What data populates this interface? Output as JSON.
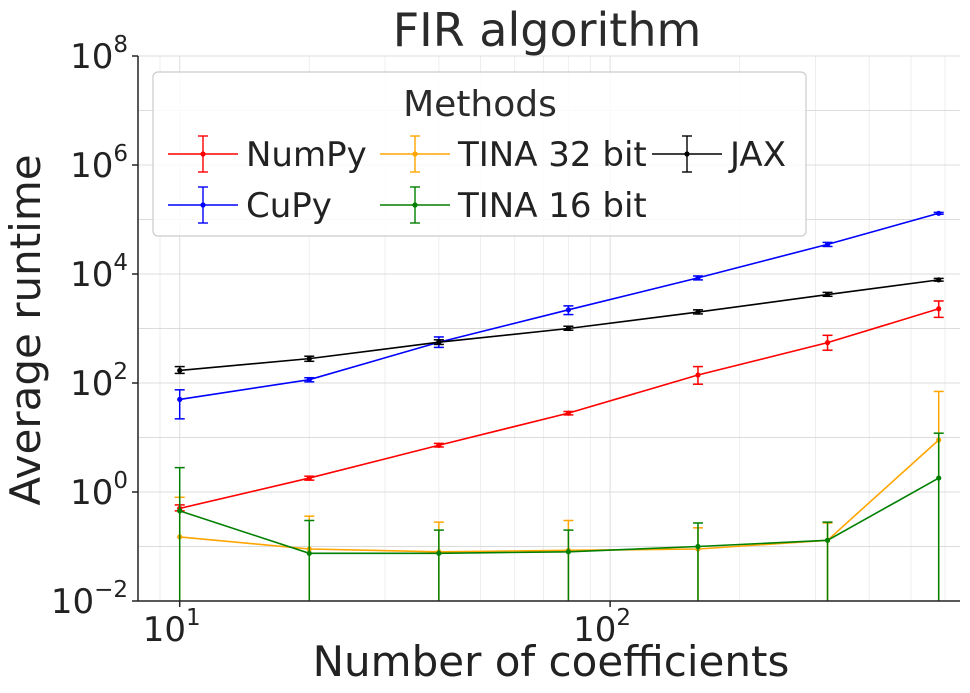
{
  "chart_data": {
    "type": "line",
    "title": "FIR algorithm",
    "xlabel": "Number of coefficients",
    "ylabel": "Average runtime",
    "xscale": "log",
    "yscale": "log",
    "xlim": [
      8,
      650
    ],
    "ylim": [
      0.01,
      100000000
    ],
    "x_ticks": [
      {
        "value": 10,
        "base": "10",
        "exp": "1"
      },
      {
        "value": 100,
        "base": "10",
        "exp": "2"
      }
    ],
    "y_ticks": [
      {
        "value": 0.01,
        "base": "10",
        "exp": "−2"
      },
      {
        "value": 1,
        "base": "10",
        "exp": "0"
      },
      {
        "value": 100,
        "base": "10",
        "exp": "2"
      },
      {
        "value": 10000,
        "base": "10",
        "exp": "4"
      },
      {
        "value": 1000000,
        "base": "10",
        "exp": "6"
      },
      {
        "value": 100000000,
        "base": "10",
        "exp": "8"
      }
    ],
    "grid": true,
    "legend": {
      "title": "Methods",
      "position": "top-left",
      "columns": 3
    },
    "x": [
      10,
      20,
      40,
      80,
      160,
      320,
      580
    ],
    "series": [
      {
        "name": "NumPy",
        "color": "#ff0000",
        "values": [
          0.5,
          1.8,
          7.2,
          28,
          140,
          550,
          2300
        ],
        "err_low": [
          0.45,
          1.65,
          6.7,
          26,
          95,
          400,
          1600
        ],
        "err_high": [
          0.58,
          1.95,
          7.8,
          30,
          200,
          750,
          3200
        ]
      },
      {
        "name": "CuPy",
        "color": "#0000ff",
        "values": [
          50,
          115,
          560,
          2200,
          8500,
          35000,
          130000
        ],
        "err_low": [
          22,
          105,
          450,
          1800,
          7800,
          32000,
          125000
        ],
        "err_high": [
          75,
          125,
          700,
          2600,
          9200,
          38000,
          135000
        ]
      },
      {
        "name": "TINA 32 bit",
        "color": "#ffa500",
        "values": [
          0.15,
          0.09,
          0.08,
          0.085,
          0.09,
          0.13,
          9
        ],
        "err_low": [
          0.01,
          0.01,
          0.01,
          0.01,
          0.01,
          0.01,
          0.01
        ],
        "err_high": [
          0.8,
          0.36,
          0.28,
          0.3,
          0.22,
          0.27,
          70
        ]
      },
      {
        "name": "TINA 16 bit",
        "color": "#008000",
        "values": [
          0.45,
          0.075,
          0.075,
          0.08,
          0.1,
          0.13,
          1.8
        ],
        "err_low": [
          0.01,
          0.01,
          0.01,
          0.01,
          0.01,
          0.01,
          0.01
        ],
        "err_high": [
          2.8,
          0.3,
          0.2,
          0.2,
          0.27,
          0.28,
          12
        ]
      },
      {
        "name": "JAX",
        "color": "#000000",
        "values": [
          170,
          280,
          560,
          1000,
          2000,
          4200,
          7800
        ],
        "err_low": [
          150,
          250,
          510,
          930,
          1850,
          3900,
          7400
        ],
        "err_high": [
          200,
          310,
          620,
          1100,
          2200,
          4600,
          8300
        ]
      }
    ]
  }
}
